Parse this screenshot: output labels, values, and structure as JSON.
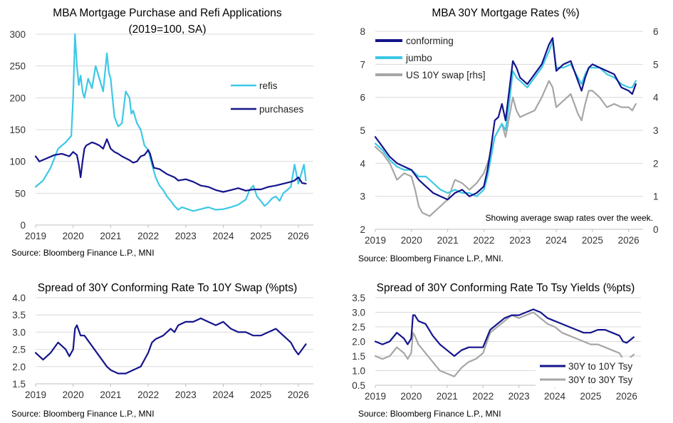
{
  "colors": {
    "navy": "#14148c",
    "cyan": "#3cc8e6",
    "gray": "#a6a6a6"
  },
  "chart_data": [
    {
      "type": "line",
      "title": "MBA Mortgage Purchase and Refi Applications",
      "subtitle": "(2019=100, SA)",
      "source": "Source: Bloomberg Finance L.P., MNI",
      "xlabel": "",
      "ylabel": "",
      "xlim": [
        2019,
        2026.4
      ],
      "ylim": [
        0,
        300
      ],
      "xticks": [
        2019,
        2020,
        2021,
        2022,
        2023,
        2024,
        2025,
        2026
      ],
      "yticks": [
        0,
        50,
        100,
        150,
        200,
        250,
        300
      ],
      "grid": true,
      "legend": "right",
      "series": [
        {
          "name": "refis",
          "color": "#3cc8e6",
          "x": [
            2019.0,
            2019.2,
            2019.4,
            2019.6,
            2019.8,
            2019.95,
            2020.0,
            2020.05,
            2020.1,
            2020.15,
            2020.2,
            2020.25,
            2020.3,
            2020.4,
            2020.5,
            2020.6,
            2020.7,
            2020.8,
            2020.9,
            2020.95,
            2021.0,
            2021.05,
            2021.1,
            2021.2,
            2021.3,
            2021.4,
            2021.5,
            2021.55,
            2021.6,
            2021.7,
            2021.8,
            2021.9,
            2022.0,
            2022.1,
            2022.2,
            2022.3,
            2022.4,
            2022.5,
            2022.6,
            2022.7,
            2022.8,
            2022.9,
            2023.0,
            2023.2,
            2023.4,
            2023.6,
            2023.8,
            2024.0,
            2024.2,
            2024.4,
            2024.6,
            2024.7,
            2024.8,
            2024.9,
            2025.0,
            2025.1,
            2025.2,
            2025.3,
            2025.4,
            2025.5,
            2025.6,
            2025.7,
            2025.8,
            2025.9,
            2026.0,
            2026.1,
            2026.15,
            2026.2
          ],
          "values": [
            60,
            70,
            90,
            120,
            130,
            140,
            200,
            300,
            250,
            220,
            235,
            210,
            200,
            230,
            215,
            250,
            230,
            210,
            270,
            240,
            230,
            200,
            170,
            155,
            160,
            210,
            200,
            175,
            180,
            160,
            150,
            125,
            118,
            95,
            75,
            62,
            55,
            45,
            38,
            30,
            24,
            28,
            26,
            22,
            25,
            28,
            24,
            25,
            28,
            32,
            40,
            55,
            62,
            45,
            38,
            30,
            35,
            42,
            45,
            38,
            50,
            55,
            60,
            95,
            65,
            85,
            95,
            70
          ]
        },
        {
          "name": "purchases",
          "color": "#14148c",
          "x": [
            2019.0,
            2019.1,
            2019.3,
            2019.5,
            2019.7,
            2019.9,
            2020.0,
            2020.1,
            2020.15,
            2020.2,
            2020.25,
            2020.3,
            2020.35,
            2020.5,
            2020.6,
            2020.7,
            2020.8,
            2020.9,
            2021.0,
            2021.1,
            2021.2,
            2021.3,
            2021.4,
            2021.5,
            2021.6,
            2021.7,
            2021.8,
            2021.9,
            2022.0,
            2022.05,
            2022.15,
            2022.3,
            2022.5,
            2022.7,
            2022.8,
            2023.0,
            2023.2,
            2023.4,
            2023.6,
            2023.8,
            2024.0,
            2024.2,
            2024.4,
            2024.6,
            2024.8,
            2025.0,
            2025.2,
            2025.4,
            2025.6,
            2025.8,
            2025.9,
            2026.0,
            2026.1,
            2026.2
          ],
          "values": [
            108,
            100,
            105,
            110,
            112,
            108,
            115,
            110,
            95,
            75,
            100,
            120,
            125,
            130,
            128,
            125,
            120,
            135,
            120,
            115,
            112,
            108,
            105,
            102,
            98,
            100,
            108,
            110,
            118,
            112,
            90,
            88,
            80,
            75,
            70,
            72,
            68,
            62,
            60,
            55,
            52,
            55,
            58,
            54,
            56,
            56,
            60,
            62,
            65,
            68,
            70,
            75,
            66,
            65
          ]
        }
      ]
    },
    {
      "type": "line",
      "title": "MBA 30Y Mortgage Rates (%)",
      "source": "Source: Bloomberg Finance L.P., MNI.",
      "note": "Showing average swap rates over the week.",
      "xlabel": "",
      "ylabel": "",
      "y2label": "",
      "xlim": [
        2019,
        2026.4
      ],
      "ylim": [
        2,
        8
      ],
      "y2lim": [
        0,
        6
      ],
      "xticks": [
        2019,
        2020,
        2021,
        2022,
        2023,
        2024,
        2025,
        2026
      ],
      "yticks": [
        2,
        3,
        4,
        5,
        6,
        7,
        8
      ],
      "y2ticks": [
        0,
        1,
        2,
        3,
        4,
        5,
        6
      ],
      "grid": true,
      "legend": "top-left",
      "series": [
        {
          "name": "conforming",
          "color": "#14148c",
          "axis": "left",
          "x": [
            2019.0,
            2019.2,
            2019.4,
            2019.6,
            2019.8,
            2020.0,
            2020.2,
            2020.4,
            2020.6,
            2020.8,
            2021.0,
            2021.2,
            2021.4,
            2021.6,
            2021.8,
            2022.0,
            2022.1,
            2022.2,
            2022.3,
            2022.4,
            2022.5,
            2022.6,
            2022.7,
            2022.8,
            2022.9,
            2023.0,
            2023.2,
            2023.4,
            2023.6,
            2023.8,
            2023.9,
            2024.0,
            2024.2,
            2024.4,
            2024.6,
            2024.7,
            2024.8,
            2024.9,
            2025.0,
            2025.2,
            2025.4,
            2025.6,
            2025.8,
            2026.0,
            2026.1,
            2026.2
          ],
          "values": [
            4.8,
            4.5,
            4.2,
            4.0,
            3.9,
            3.8,
            3.5,
            3.3,
            3.1,
            3.0,
            2.9,
            3.1,
            3.2,
            3.0,
            3.1,
            3.3,
            3.8,
            4.5,
            5.3,
            5.4,
            5.8,
            5.3,
            6.2,
            7.1,
            6.9,
            6.6,
            6.4,
            6.7,
            7.0,
            7.6,
            7.8,
            6.8,
            7.0,
            7.1,
            6.5,
            6.2,
            6.6,
            6.9,
            7.0,
            6.9,
            6.8,
            6.7,
            6.3,
            6.2,
            6.1,
            6.4
          ]
        },
        {
          "name": "jumbo",
          "color": "#3cc8e6",
          "axis": "left",
          "x": [
            2019.0,
            2019.2,
            2019.4,
            2019.6,
            2019.8,
            2020.0,
            2020.2,
            2020.4,
            2020.6,
            2020.8,
            2021.0,
            2021.2,
            2021.4,
            2021.6,
            2021.8,
            2022.0,
            2022.1,
            2022.2,
            2022.3,
            2022.4,
            2022.5,
            2022.6,
            2022.7,
            2022.8,
            2022.9,
            2023.0,
            2023.2,
            2023.4,
            2023.6,
            2023.8,
            2023.9,
            2024.0,
            2024.2,
            2024.4,
            2024.6,
            2024.7,
            2024.8,
            2024.9,
            2025.0,
            2025.2,
            2025.4,
            2025.6,
            2025.8,
            2026.0,
            2026.1,
            2026.2
          ],
          "values": [
            4.6,
            4.4,
            4.1,
            3.9,
            3.8,
            3.8,
            3.6,
            3.6,
            3.4,
            3.2,
            3.1,
            3.2,
            3.1,
            3.1,
            3.0,
            3.2,
            3.6,
            4.2,
            4.8,
            5.0,
            5.2,
            5.0,
            5.8,
            6.8,
            6.6,
            6.5,
            6.3,
            6.6,
            6.9,
            7.4,
            7.7,
            6.9,
            6.9,
            7.0,
            6.6,
            6.4,
            6.7,
            6.9,
            6.9,
            6.9,
            6.7,
            6.6,
            6.4,
            6.3,
            6.3,
            6.5
          ]
        },
        {
          "name": "US 10Y swap [rhs]",
          "color": "#a6a6a6",
          "axis": "right",
          "x": [
            2019.0,
            2019.2,
            2019.4,
            2019.6,
            2019.8,
            2020.0,
            2020.1,
            2020.2,
            2020.3,
            2020.5,
            2020.7,
            2020.9,
            2021.0,
            2021.2,
            2021.4,
            2021.6,
            2021.8,
            2022.0,
            2022.1,
            2022.2,
            2022.3,
            2022.4,
            2022.5,
            2022.6,
            2022.7,
            2022.8,
            2022.9,
            2023.0,
            2023.2,
            2023.4,
            2023.6,
            2023.8,
            2023.9,
            2024.0,
            2024.2,
            2024.4,
            2024.6,
            2024.7,
            2024.8,
            2024.9,
            2025.0,
            2025.2,
            2025.4,
            2025.6,
            2025.8,
            2026.0,
            2026.1,
            2026.2
          ],
          "values": [
            2.5,
            2.3,
            2.0,
            1.5,
            1.7,
            1.6,
            1.2,
            0.7,
            0.5,
            0.4,
            0.6,
            0.8,
            0.9,
            1.5,
            1.4,
            1.2,
            1.4,
            1.7,
            2.0,
            2.3,
            2.8,
            3.0,
            3.2,
            2.8,
            3.4,
            4.0,
            3.6,
            3.4,
            3.5,
            3.6,
            4.0,
            4.5,
            4.3,
            3.7,
            3.9,
            4.1,
            3.5,
            3.3,
            3.8,
            4.2,
            4.2,
            4.0,
            3.7,
            3.8,
            3.7,
            3.7,
            3.6,
            3.8
          ]
        }
      ]
    },
    {
      "type": "line",
      "title": "Spread of 30Y Conforming Rate To 10Y Swap (%pts)",
      "source": "Source: Bloomberg Finance L.P., MNI",
      "xlabel": "",
      "ylabel": "",
      "xlim": [
        2019,
        2026.4
      ],
      "ylim": [
        1.5,
        4.0
      ],
      "xticks": [
        2019,
        2020,
        2021,
        2022,
        2023,
        2024,
        2025,
        2026
      ],
      "yticks": [
        1.5,
        2.0,
        2.5,
        3.0,
        3.5,
        4.0
      ],
      "grid": true,
      "legend": "none",
      "series": [
        {
          "name": "spread",
          "color": "#14148c",
          "x": [
            2019.0,
            2019.2,
            2019.4,
            2019.6,
            2019.8,
            2019.9,
            2020.0,
            2020.05,
            2020.1,
            2020.2,
            2020.3,
            2020.5,
            2020.7,
            2020.9,
            2021.0,
            2021.2,
            2021.4,
            2021.6,
            2021.8,
            2022.0,
            2022.1,
            2022.2,
            2022.4,
            2022.6,
            2022.7,
            2022.8,
            2023.0,
            2023.2,
            2023.4,
            2023.6,
            2023.8,
            2024.0,
            2024.2,
            2024.4,
            2024.6,
            2024.8,
            2025.0,
            2025.2,
            2025.4,
            2025.6,
            2025.8,
            2025.9,
            2026.0,
            2026.1,
            2026.2
          ],
          "values": [
            2.4,
            2.2,
            2.4,
            2.7,
            2.5,
            2.3,
            2.5,
            3.1,
            3.2,
            2.9,
            2.9,
            2.6,
            2.3,
            2.0,
            1.9,
            1.8,
            1.8,
            1.9,
            2.0,
            2.4,
            2.7,
            2.8,
            2.9,
            3.1,
            3.0,
            3.2,
            3.3,
            3.3,
            3.4,
            3.3,
            3.2,
            3.3,
            3.1,
            3.0,
            3.0,
            2.9,
            2.9,
            3.0,
            3.1,
            2.9,
            2.7,
            2.5,
            2.35,
            2.5,
            2.65
          ]
        }
      ]
    },
    {
      "type": "line",
      "title": "Spread of 30Y Conforming Rate To Tsy Yields (%pts)",
      "source": "Source: Bloomberg Finance L.P., MNI",
      "xlabel": "",
      "ylabel": "",
      "xlim": [
        2019,
        2026.4
      ],
      "ylim": [
        0.5,
        3.5
      ],
      "xticks": [
        2019,
        2020,
        2021,
        2022,
        2023,
        2024,
        2025,
        2026
      ],
      "yticks": [
        0.5,
        1.0,
        1.5,
        2.0,
        2.5,
        3.0,
        3.5
      ],
      "grid": true,
      "legend": "bottom-right",
      "series": [
        {
          "name": "30Y to 10Y Tsy",
          "color": "#14148c",
          "x": [
            2019.0,
            2019.2,
            2019.4,
            2019.6,
            2019.8,
            2019.9,
            2020.0,
            2020.05,
            2020.1,
            2020.2,
            2020.4,
            2020.6,
            2020.8,
            2021.0,
            2021.2,
            2021.4,
            2021.6,
            2021.8,
            2022.0,
            2022.2,
            2022.4,
            2022.6,
            2022.8,
            2023.0,
            2023.2,
            2023.4,
            2023.6,
            2023.8,
            2024.0,
            2024.2,
            2024.4,
            2024.6,
            2024.8,
            2025.0,
            2025.2,
            2025.4,
            2025.6,
            2025.8,
            2025.9,
            2026.0,
            2026.1,
            2026.2
          ],
          "values": [
            2.0,
            1.9,
            2.0,
            2.3,
            2.1,
            1.9,
            2.1,
            2.9,
            2.9,
            2.7,
            2.6,
            2.2,
            1.9,
            1.7,
            1.5,
            1.7,
            1.8,
            1.8,
            1.8,
            2.4,
            2.6,
            2.8,
            2.9,
            2.9,
            3.0,
            3.1,
            3.0,
            2.8,
            2.7,
            2.6,
            2.5,
            2.4,
            2.3,
            2.3,
            2.4,
            2.4,
            2.3,
            2.2,
            2.0,
            1.95,
            2.05,
            2.15
          ]
        },
        {
          "name": "30Y to 30Y Tsy",
          "color": "#a6a6a6",
          "x": [
            2019.0,
            2019.2,
            2019.4,
            2019.6,
            2019.8,
            2019.9,
            2020.0,
            2020.05,
            2020.1,
            2020.2,
            2020.4,
            2020.6,
            2020.8,
            2021.0,
            2021.2,
            2021.4,
            2021.6,
            2021.8,
            2022.0,
            2022.2,
            2022.4,
            2022.6,
            2022.8,
            2023.0,
            2023.2,
            2023.4,
            2023.6,
            2023.8,
            2024.0,
            2024.2,
            2024.4,
            2024.6,
            2024.8,
            2025.0,
            2025.2,
            2025.4,
            2025.6,
            2025.8,
            2025.9,
            2026.0,
            2026.1,
            2026.2
          ],
          "values": [
            1.5,
            1.4,
            1.5,
            1.8,
            1.6,
            1.4,
            1.6,
            2.3,
            2.2,
            1.9,
            1.6,
            1.3,
            1.0,
            0.9,
            0.8,
            1.1,
            1.3,
            1.4,
            1.6,
            2.3,
            2.5,
            2.7,
            2.9,
            2.8,
            2.9,
            3.0,
            2.8,
            2.6,
            2.5,
            2.3,
            2.2,
            2.1,
            2.0,
            1.9,
            1.9,
            1.8,
            1.7,
            1.6,
            1.4,
            1.35,
            1.45,
            1.55
          ]
        }
      ]
    }
  ]
}
